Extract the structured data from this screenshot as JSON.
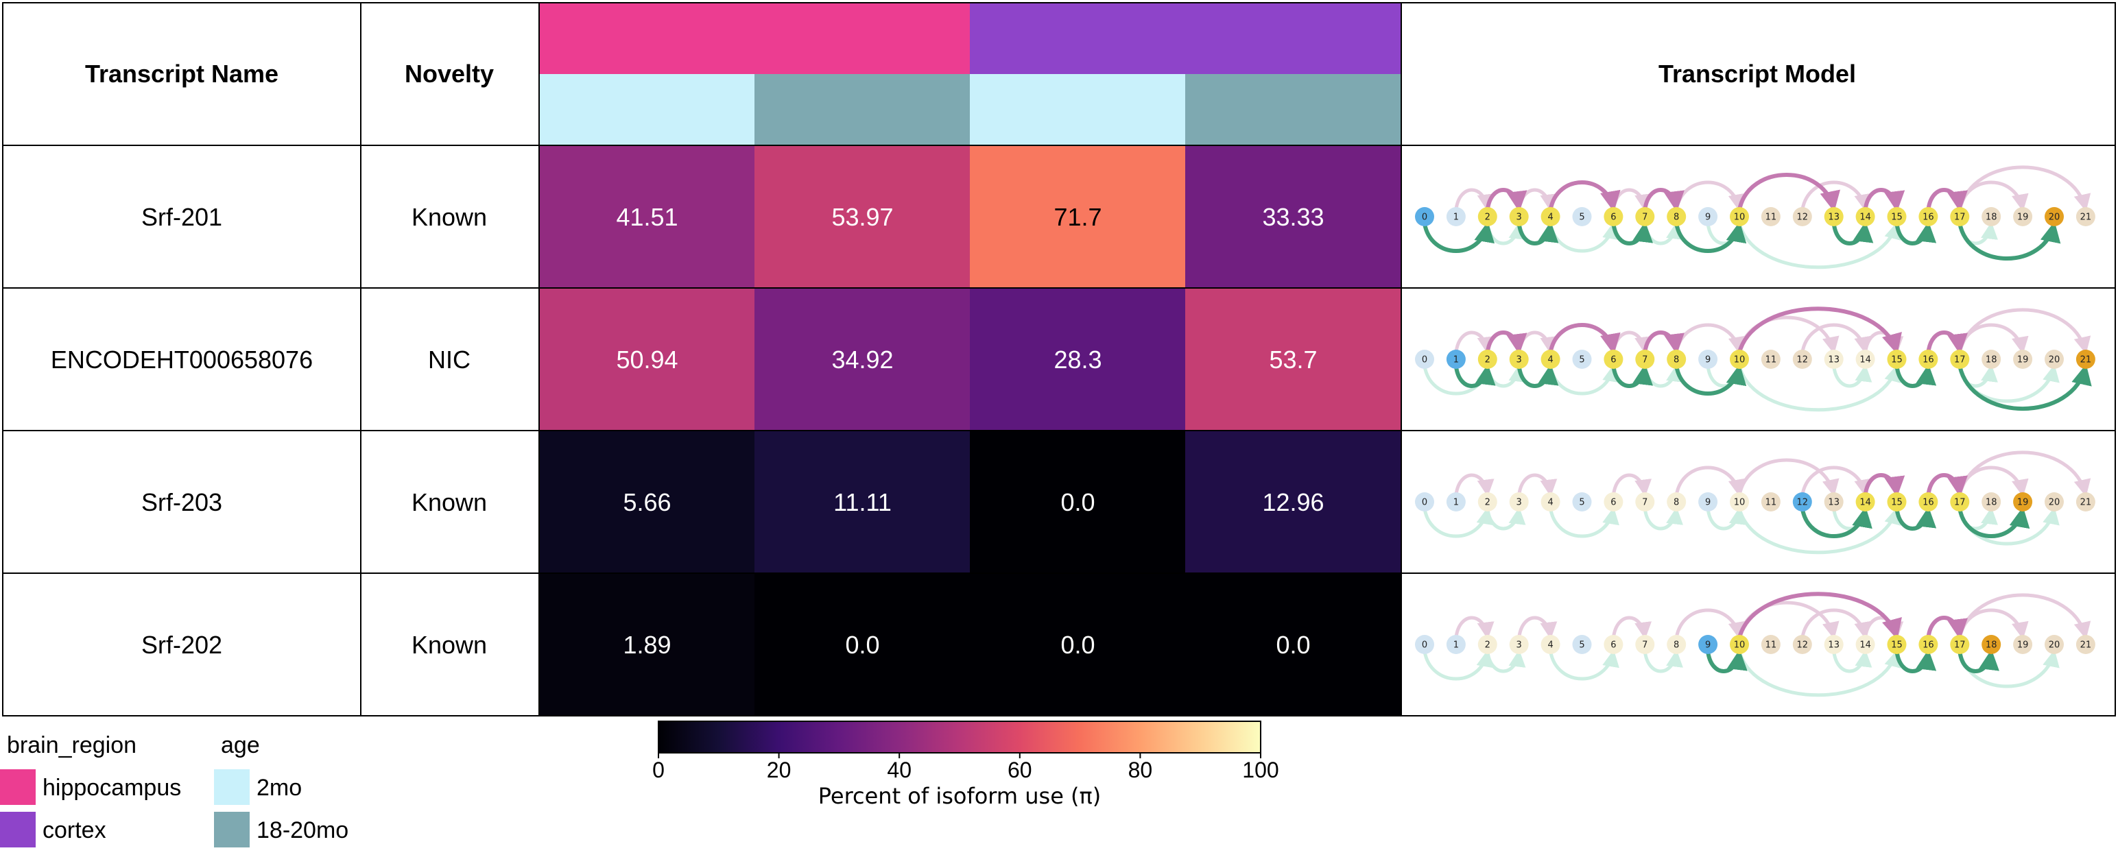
{
  "table": {
    "headers": {
      "transcript_name": "Transcript Name",
      "novelty": "Novelty",
      "transcript_model": "Transcript Model"
    }
  },
  "colors": {
    "hippocampus": "#ec3d91",
    "cortex": "#8e44c9",
    "2mo": "#c9f1fb",
    "18-20mo": "#7ea9b1",
    "path_up": "#c47ab1",
    "path_down": "#3f9d77",
    "path_faint_up": "#e6cbdd",
    "path_faint_down": "#cdeee2",
    "node_blue": "#5aaee6",
    "node_yellow": "#f0df52",
    "node_orange": "#e4a021",
    "node_pale_blue": "#d2e4f2",
    "node_pale_beige": "#ebdcc5",
    "node_pale_cream": "#f6efd7"
  },
  "chart_data": {
    "type": "heatmap",
    "columns": [
      {
        "brain_region": "hippocampus",
        "age": "2mo"
      },
      {
        "brain_region": "hippocampus",
        "age": "18-20mo"
      },
      {
        "brain_region": "cortex",
        "age": "2mo"
      },
      {
        "brain_region": "cortex",
        "age": "18-20mo"
      }
    ],
    "rows": [
      {
        "name": "Srf-201",
        "novelty": "Known",
        "values": [
          41.51,
          53.97,
          71.7,
          33.33
        ],
        "labels": [
          "41.51",
          "53.97",
          "71.7",
          "33.33"
        ]
      },
      {
        "name": "ENCODEHT000658076",
        "novelty": "NIC",
        "values": [
          50.94,
          34.92,
          28.3,
          53.7
        ],
        "labels": [
          "50.94",
          "34.92",
          "28.3",
          "53.7"
        ]
      },
      {
        "name": "Srf-203",
        "novelty": "Known",
        "values": [
          5.66,
          11.11,
          0.0,
          12.96
        ],
        "labels": [
          "5.66",
          "11.11",
          "0.0",
          "12.96"
        ]
      },
      {
        "name": "Srf-202",
        "novelty": "Known",
        "values": [
          1.89,
          0.0,
          0.0,
          0.0
        ],
        "labels": [
          "1.89",
          "0.0",
          "0.0",
          "0.0"
        ]
      }
    ],
    "colorbar": {
      "label": "Percent of isoform use (π)",
      "range": [
        0,
        100
      ],
      "ticks": [
        0,
        20,
        40,
        60,
        80,
        100
      ],
      "colormap": "magma"
    },
    "legend": {
      "brain_region": {
        "title": "brain_region",
        "items": [
          "hippocampus",
          "cortex"
        ]
      },
      "age": {
        "title": "age",
        "items": [
          "2mo",
          "18-20mo"
        ]
      }
    },
    "transcript_models": {
      "node_labels": [
        "0",
        "1",
        "2",
        "3",
        "4",
        "5",
        "6",
        "7",
        "8",
        "9",
        "10",
        "11",
        "12",
        "13",
        "14",
        "15",
        "16",
        "17",
        "18",
        "19",
        "20",
        "21"
      ],
      "rows": [
        {
          "node_styles": [
            "blue",
            "paleblue",
            "yellow",
            "yellow",
            "yellow",
            "paleblue",
            "yellow",
            "yellow",
            "yellow",
            "paleblue",
            "yellow",
            "palebeige",
            "palebeige",
            "yellow",
            "yellow",
            "yellow",
            "yellow",
            "yellow",
            "palebeige",
            "palebeige",
            "orange",
            "palebeige"
          ],
          "path": [
            0,
            2,
            3,
            4,
            6,
            7,
            8,
            10,
            13,
            14,
            15,
            16,
            17,
            20
          ]
        },
        {
          "node_styles": [
            "paleblue",
            "blue",
            "yellow",
            "yellow",
            "yellow",
            "paleblue",
            "yellow",
            "yellow",
            "yellow",
            "paleblue",
            "yellow",
            "palebeige",
            "palebeige",
            "palecream",
            "palecream",
            "yellow",
            "yellow",
            "yellow",
            "palebeige",
            "palebeige",
            "palebeige",
            "orange"
          ],
          "path": [
            1,
            2,
            3,
            4,
            6,
            7,
            8,
            10,
            15,
            16,
            17,
            21
          ]
        },
        {
          "node_styles": [
            "paleblue",
            "paleblue",
            "palecream",
            "palecream",
            "palecream",
            "paleblue",
            "palecream",
            "palecream",
            "palecream",
            "paleblue",
            "palecream",
            "palebeige",
            "blue",
            "palebeige",
            "yellow",
            "yellow",
            "yellow",
            "yellow",
            "palebeige",
            "orange",
            "palebeige",
            "palebeige"
          ],
          "path": [
            12,
            14,
            15,
            16,
            17,
            19
          ]
        },
        {
          "node_styles": [
            "paleblue",
            "paleblue",
            "palecream",
            "palecream",
            "palecream",
            "paleblue",
            "palecream",
            "palecream",
            "palecream",
            "blue",
            "yellow",
            "palebeige",
            "palebeige",
            "palecream",
            "palecream",
            "yellow",
            "yellow",
            "yellow",
            "orange",
            "palebeige",
            "palebeige",
            "palebeige"
          ],
          "path": [
            9,
            10,
            15,
            16,
            17,
            18
          ]
        }
      ]
    }
  }
}
